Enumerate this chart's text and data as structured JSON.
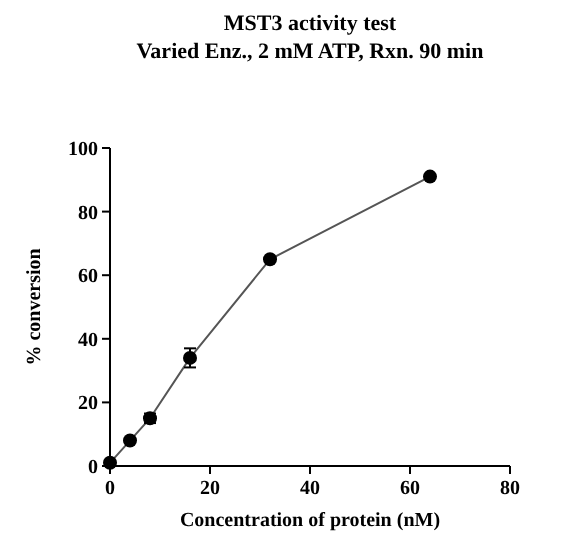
{
  "chart_data": {
    "type": "line",
    "title": "MST3 activity test",
    "subtitle": "Varied Enz., 2 mM ATP, Rxn. 90 min",
    "xlabel": "Concentration of protein (nM)",
    "ylabel": "% conversion",
    "x": [
      0,
      4,
      8,
      16,
      32,
      64
    ],
    "series": [
      {
        "color": "#000000",
        "values": [
          1,
          8,
          15,
          34,
          65,
          91
        ],
        "errors": [
          null,
          null,
          1.5,
          3,
          null,
          null
        ]
      }
    ],
    "xlim": [
      0,
      80
    ],
    "xticks": [
      0,
      20,
      40,
      60,
      80
    ],
    "ylim": [
      0,
      100
    ],
    "yticks": [
      0,
      20,
      40,
      60,
      80,
      100
    ],
    "marker": "circle",
    "line_style": "solid",
    "grid": false
  }
}
